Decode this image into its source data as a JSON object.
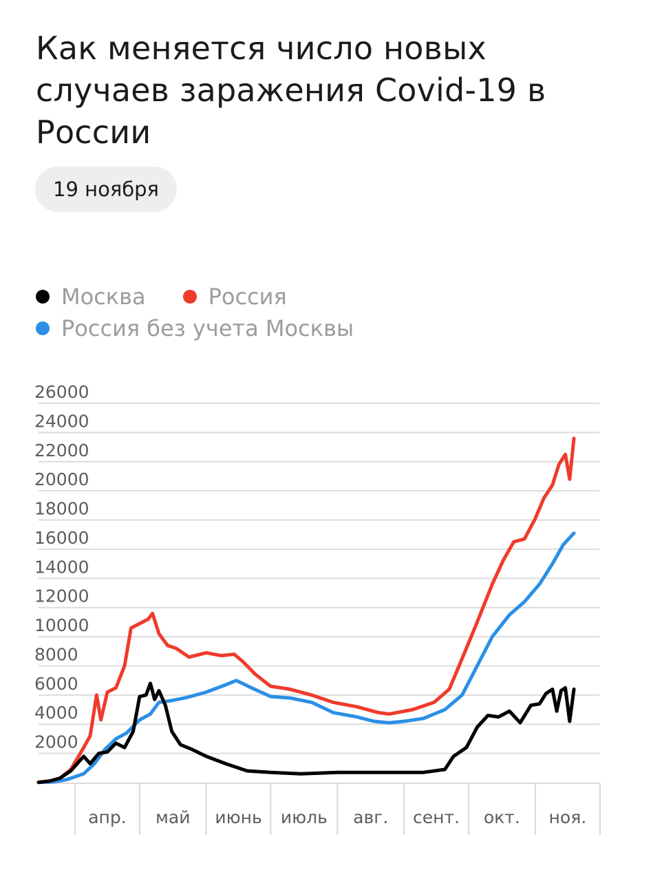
{
  "header": {
    "title": "Как меняется число новых случаев заражения Covid-19 в России",
    "date": "19 ноября"
  },
  "legend": [
    {
      "label": "Москва",
      "color": "#000000"
    },
    {
      "label": "Россия",
      "color": "#ef3b2c"
    },
    {
      "label": "Россия без учета Москвы",
      "color": "#2b8fe6"
    }
  ],
  "chart_data": {
    "type": "line",
    "ylim": [
      0,
      26000
    ],
    "yticks": [
      "2000",
      "4000",
      "6000",
      "8000",
      "10000",
      "12000",
      "14000",
      "16000",
      "18000",
      "20000",
      "22000",
      "24000",
      "26000"
    ],
    "xticks": [
      "апр.",
      "май",
      "июнь",
      "июль",
      "авг.",
      "сент.",
      "окт.",
      "ноя."
    ],
    "grid": true,
    "legend_position": "top-left",
    "series": [
      {
        "name": "Москва",
        "color": "#000000",
        "points": [
          [
            "03-15",
            20
          ],
          [
            "03-20",
            100
          ],
          [
            "03-25",
            300
          ],
          [
            "03-30",
            800
          ],
          [
            "04-05",
            1800
          ],
          [
            "04-08",
            1300
          ],
          [
            "04-12",
            2000
          ],
          [
            "04-16",
            2100
          ],
          [
            "04-20",
            2700
          ],
          [
            "04-24",
            2400
          ],
          [
            "04-28",
            3500
          ],
          [
            "05-01",
            5900
          ],
          [
            "05-04",
            6000
          ],
          [
            "05-06",
            6800
          ],
          [
            "05-08",
            5700
          ],
          [
            "05-10",
            6300
          ],
          [
            "05-13",
            5300
          ],
          [
            "05-16",
            3500
          ],
          [
            "05-20",
            2600
          ],
          [
            "05-25",
            2300
          ],
          [
            "06-01",
            1800
          ],
          [
            "06-10",
            1300
          ],
          [
            "06-20",
            800
          ],
          [
            "07-01",
            700
          ],
          [
            "07-15",
            600
          ],
          [
            "08-01",
            700
          ],
          [
            "08-15",
            700
          ],
          [
            "09-01",
            700
          ],
          [
            "09-10",
            700
          ],
          [
            "09-20",
            900
          ],
          [
            "09-24",
            1800
          ],
          [
            "09-30",
            2400
          ],
          [
            "10-05",
            3800
          ],
          [
            "10-10",
            4600
          ],
          [
            "10-15",
            4500
          ],
          [
            "10-20",
            4900
          ],
          [
            "10-25",
            4100
          ],
          [
            "10-30",
            5300
          ],
          [
            "11-03",
            5400
          ],
          [
            "11-06",
            6100
          ],
          [
            "11-09",
            6400
          ],
          [
            "11-11",
            4900
          ],
          [
            "11-13",
            6300
          ],
          [
            "11-15",
            6500
          ],
          [
            "11-17",
            4200
          ],
          [
            "11-19",
            6400
          ]
        ]
      },
      {
        "name": "Россия",
        "color": "#ef3b2c",
        "points": [
          [
            "03-15",
            20
          ],
          [
            "03-20",
            100
          ],
          [
            "03-25",
            300
          ],
          [
            "03-30",
            900
          ],
          [
            "04-05",
            2400
          ],
          [
            "04-08",
            3200
          ],
          [
            "04-11",
            6000
          ],
          [
            "04-13",
            4300
          ],
          [
            "04-16",
            6200
          ],
          [
            "04-20",
            6500
          ],
          [
            "04-24",
            8000
          ],
          [
            "04-27",
            10600
          ],
          [
            "05-01",
            10900
          ],
          [
            "05-05",
            11200
          ],
          [
            "05-07",
            11600
          ],
          [
            "05-10",
            10200
          ],
          [
            "05-14",
            9400
          ],
          [
            "05-18",
            9200
          ],
          [
            "05-24",
            8600
          ],
          [
            "06-01",
            8900
          ],
          [
            "06-08",
            8700
          ],
          [
            "06-14",
            8800
          ],
          [
            "06-18",
            8300
          ],
          [
            "06-24",
            7400
          ],
          [
            "07-01",
            6600
          ],
          [
            "07-10",
            6400
          ],
          [
            "07-20",
            6000
          ],
          [
            "07-30",
            5500
          ],
          [
            "08-10",
            5200
          ],
          [
            "08-20",
            4800
          ],
          [
            "08-25",
            4700
          ],
          [
            "09-05",
            5000
          ],
          [
            "09-15",
            5500
          ],
          [
            "09-22",
            6400
          ],
          [
            "09-28",
            8500
          ],
          [
            "10-05",
            11000
          ],
          [
            "10-12",
            13600
          ],
          [
            "10-17",
            15200
          ],
          [
            "10-22",
            16500
          ],
          [
            "10-27",
            16700
          ],
          [
            "11-01",
            18100
          ],
          [
            "11-05",
            19500
          ],
          [
            "11-09",
            20400
          ],
          [
            "11-12",
            21800
          ],
          [
            "11-15",
            22500
          ],
          [
            "11-17",
            20800
          ],
          [
            "11-19",
            23600
          ]
        ]
      },
      {
        "name": "Россия без учета Москвы",
        "color": "#2b8fe6",
        "points": [
          [
            "03-15",
            10
          ],
          [
            "03-22",
            50
          ],
          [
            "03-28",
            200
          ],
          [
            "04-05",
            600
          ],
          [
            "04-10",
            1300
          ],
          [
            "04-15",
            2300
          ],
          [
            "04-20",
            3000
          ],
          [
            "04-25",
            3400
          ],
          [
            "05-01",
            4300
          ],
          [
            "05-06",
            4700
          ],
          [
            "05-10",
            5500
          ],
          [
            "05-15",
            5600
          ],
          [
            "05-22",
            5800
          ],
          [
            "06-01",
            6200
          ],
          [
            "06-10",
            6700
          ],
          [
            "06-15",
            7000
          ],
          [
            "06-22",
            6500
          ],
          [
            "07-01",
            5900
          ],
          [
            "07-10",
            5800
          ],
          [
            "07-20",
            5500
          ],
          [
            "07-30",
            4800
          ],
          [
            "08-10",
            4500
          ],
          [
            "08-18",
            4200
          ],
          [
            "08-25",
            4100
          ],
          [
            "09-01",
            4200
          ],
          [
            "09-10",
            4400
          ],
          [
            "09-20",
            5000
          ],
          [
            "09-28",
            6000
          ],
          [
            "10-05",
            8000
          ],
          [
            "10-12",
            10000
          ],
          [
            "10-20",
            11500
          ],
          [
            "10-27",
            12400
          ],
          [
            "11-03",
            13600
          ],
          [
            "11-09",
            15000
          ],
          [
            "11-14",
            16300
          ],
          [
            "11-19",
            17100
          ]
        ]
      }
    ]
  }
}
